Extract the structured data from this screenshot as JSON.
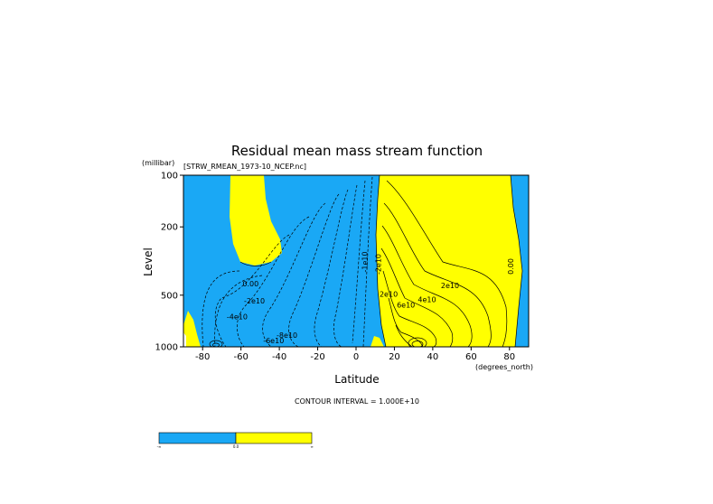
{
  "chart_data": {
    "type": "contour",
    "title": "Residual mean mass stream function",
    "source_file": "[STRW_RMEAN_1973-10_NCEP.nc]",
    "xlabel": "Latitude",
    "x_units": "(degrees_north)",
    "ylabel": "Level",
    "y_units": "(millibar)",
    "xlim": [
      -90,
      90
    ],
    "ylim": [
      1000,
      100
    ],
    "y_scale": "log",
    "x_ticks": [
      {
        "value": -80,
        "label": "-80"
      },
      {
        "value": -60,
        "label": "-60"
      },
      {
        "value": -40,
        "label": "-40"
      },
      {
        "value": -20,
        "label": "-20"
      },
      {
        "value": 0,
        "label": "0"
      },
      {
        "value": 20,
        "label": "20"
      },
      {
        "value": 40,
        "label": "40"
      },
      {
        "value": 60,
        "label": "60"
      },
      {
        "value": 80,
        "label": "80"
      }
    ],
    "y_ticks": [
      {
        "value": 100,
        "label": "100"
      },
      {
        "value": 200,
        "label": "200"
      },
      {
        "value": 500,
        "label": "500"
      },
      {
        "value": 1000,
        "label": "1000"
      }
    ],
    "contour_interval": "CONTOUR INTERVAL = 1.000E+10",
    "contour_labels": [
      {
        "lat": -55,
        "lev": 445,
        "text": "0.00"
      },
      {
        "lat": -53,
        "lev": 560,
        "text": "-2e10"
      },
      {
        "lat": -62,
        "lev": 690,
        "text": "-4e10"
      },
      {
        "lat": -36,
        "lev": 885,
        "text": "-8e10"
      },
      {
        "lat": -43,
        "lev": 950,
        "text": "-6e10"
      },
      {
        "lat": 6,
        "lev": 320,
        "text": "-1e10"
      },
      {
        "lat": 13,
        "lev": 330,
        "text": "-2e10"
      },
      {
        "lat": 17,
        "lev": 510,
        "text": "2e10"
      },
      {
        "lat": 49,
        "lev": 455,
        "text": "2e10"
      },
      {
        "lat": 37,
        "lev": 550,
        "text": "4e10"
      },
      {
        "lat": 26,
        "lev": 590,
        "text": "6e10"
      },
      {
        "lat": 82,
        "lev": 340,
        "text": "0.00"
      }
    ],
    "fill_levels": [
      {
        "range": "< 0",
        "color": "#1aa8f5"
      },
      {
        "range": "> 0",
        "color": "#ffff00"
      }
    ],
    "colorbar_labels": [
      "-∞",
      "0.0",
      "∞"
    ]
  }
}
